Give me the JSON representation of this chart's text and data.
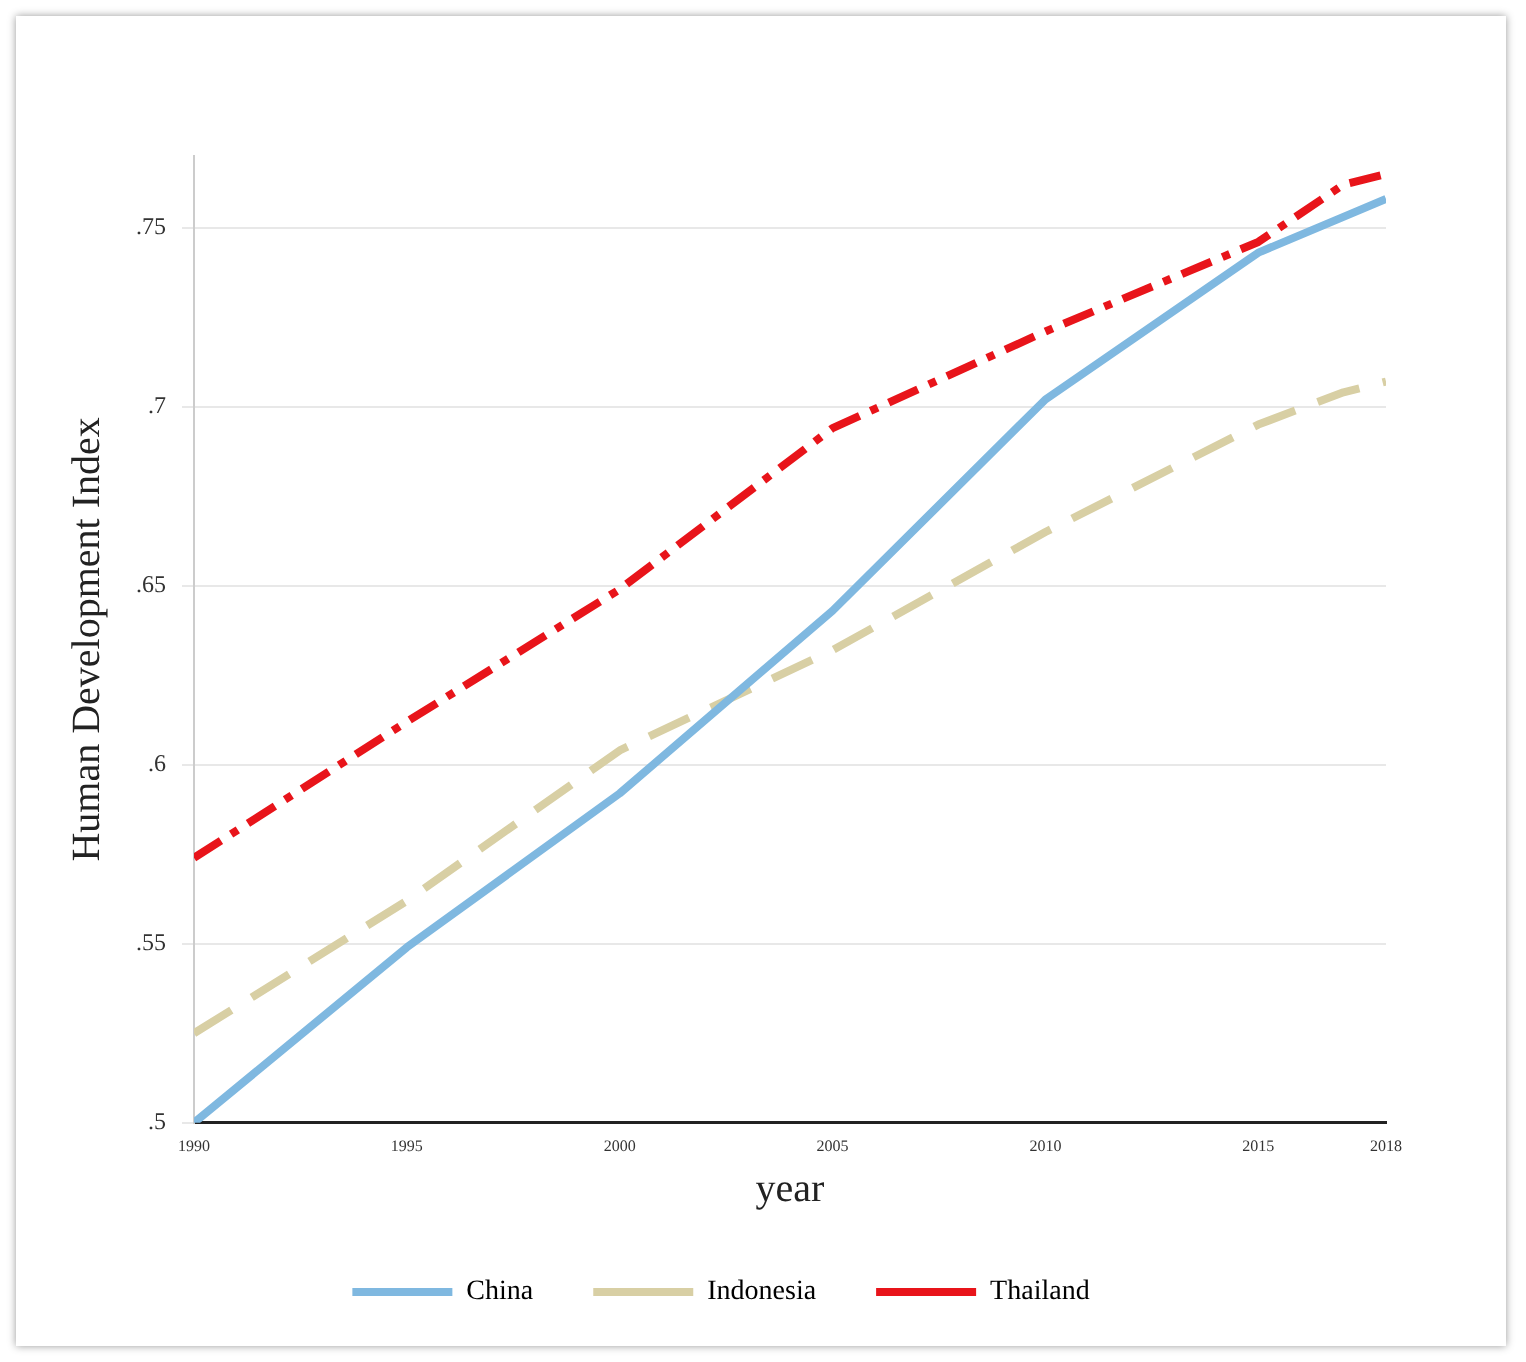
{
  "chart_data": {
    "type": "line",
    "xlabel": "year",
    "ylabel": "Human Development Index",
    "x": [
      1990,
      1995,
      2000,
      2005,
      2010,
      2015,
      2017,
      2018
    ],
    "xlim": [
      1990,
      2018
    ],
    "xticks": [
      1990,
      1995,
      2000,
      2005,
      2010,
      2015,
      2018
    ],
    "ylim": [
      0.5,
      0.77
    ],
    "yticks": [
      {
        "value": 0.5,
        "label": ".5"
      },
      {
        "value": 0.55,
        "label": ".55"
      },
      {
        "value": 0.6,
        "label": ".6"
      },
      {
        "value": 0.65,
        "label": ".65"
      },
      {
        "value": 0.7,
        "label": ".7"
      },
      {
        "value": 0.75,
        "label": ".75"
      }
    ],
    "grid": "y",
    "legend": "bottom",
    "series": [
      {
        "name": "China",
        "color": "#7fb8e0",
        "line_style": "solid",
        "values": [
          0.5,
          0.549,
          0.592,
          0.643,
          0.702,
          0.743,
          0.753,
          0.758
        ]
      },
      {
        "name": "Indonesia",
        "color": "#d8cfa4",
        "line_style": "dashed",
        "values": [
          0.525,
          0.562,
          0.604,
          0.632,
          0.665,
          0.695,
          0.704,
          0.707
        ]
      },
      {
        "name": "Thailand",
        "color": "#e8141a",
        "line_style": "dashdot",
        "values": [
          0.574,
          0.612,
          0.649,
          0.694,
          0.721,
          0.746,
          0.762,
          0.765
        ]
      }
    ]
  }
}
